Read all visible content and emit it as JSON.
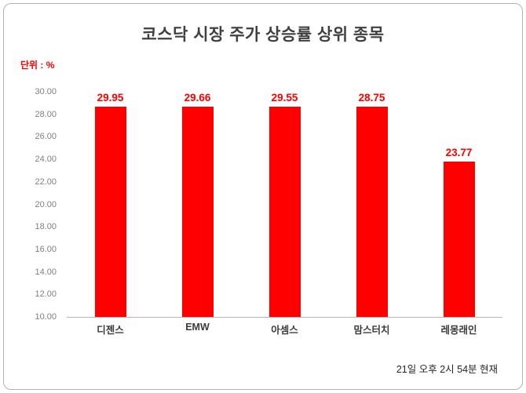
{
  "header": {
    "title": "코스닥 시장 주가 상승률 상위 종목",
    "unit_label": "단위 : %"
  },
  "footer": {
    "timestamp_note": "21일 오후 2시 54분 현재"
  },
  "colors": {
    "bar": "#ff0000",
    "value_label": "#ff0000",
    "tick_label": "#7f7f7f",
    "title": "#404040",
    "axis_line": "#b7b7b7"
  },
  "chart_data": {
    "type": "bar",
    "title": "코스닥 시장 주가 상승률 상위 종목",
    "categories": [
      "디젠스",
      "EMW",
      "아셈스",
      "맘스터치",
      "레몽래인"
    ],
    "values": [
      29.95,
      29.66,
      29.55,
      28.75,
      23.77
    ],
    "xlabel": "",
    "ylabel": "단위 : %",
    "ylim": [
      10,
      30
    ],
    "ytick_step": 2,
    "ytick_decimals": 2,
    "grid": false,
    "legend": false,
    "bar_color": "#ff0000",
    "annotation": "21일 오후 2시 54분 현재"
  }
}
